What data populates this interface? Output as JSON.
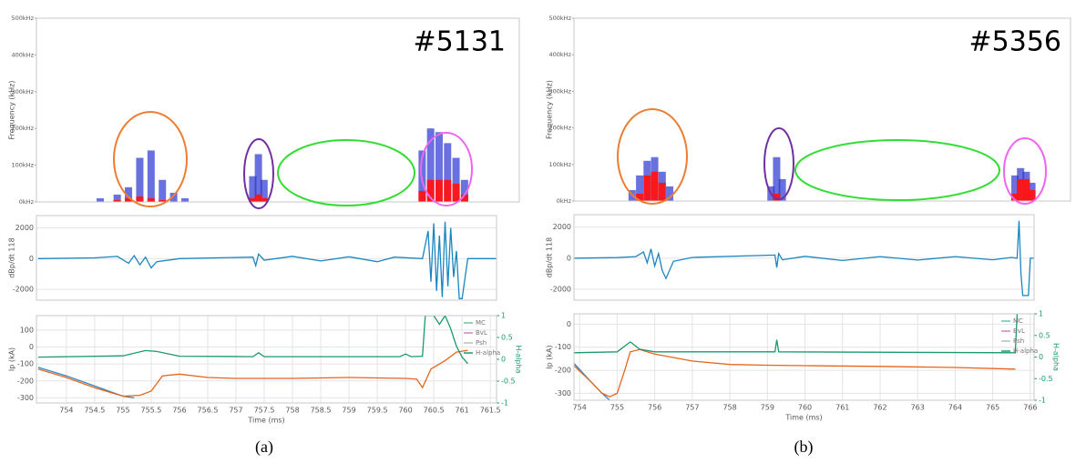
{
  "chart_data": [
    {
      "type": "spectrogram",
      "ylabel": "Frequency (kHz)",
      "annotation": "#5131",
      "xlim": [
        753.47,
        762.02
      ],
      "ylim": [
        0,
        500
      ],
      "yticks": [
        {
          "value": 0,
          "label": "0kHz"
        },
        {
          "value": 100,
          "label": "100kHz"
        },
        {
          "value": 200,
          "label": "200kHz"
        },
        {
          "value": 300,
          "label": "300kHz"
        },
        {
          "value": 400,
          "label": "400kHz"
        },
        {
          "value": 500,
          "label": "500kHz"
        }
      ],
      "x": [
        754.6,
        754.9,
        755.1,
        755.3,
        755.5,
        755.7,
        755.9,
        756.1,
        757.3,
        757.4,
        757.5,
        760.3,
        760.45,
        760.6,
        760.75,
        760.9,
        761.05
      ],
      "series": [
        {
          "color": "#2a35d0",
          "values": [
            10,
            20,
            40,
            120,
            140,
            60,
            25,
            10,
            70,
            130,
            60,
            140,
            200,
            190,
            160,
            120,
            60
          ]
        },
        {
          "color": "#ff1414",
          "values": [
            0,
            5,
            10,
            15,
            10,
            5,
            0,
            0,
            10,
            20,
            10,
            30,
            60,
            60,
            60,
            50,
            20
          ]
        }
      ]
    },
    {
      "type": "line",
      "ylabel": "dBp/dt 118",
      "grid": true,
      "xlim": [
        753.47,
        761.61
      ],
      "ylim": [
        -2700,
        2800
      ],
      "yticks": [
        2000,
        0,
        -2000
      ],
      "series": [
        {
          "color": "#1a86c0",
          "x": [
            753.5,
            754.5,
            754.9,
            755.1,
            755.2,
            755.3,
            755.4,
            755.5,
            755.6,
            756,
            757.3,
            757.35,
            757.4,
            757.5,
            758,
            758.5,
            759,
            759.5,
            759.8,
            760.3,
            760.4,
            760.45,
            760.5,
            760.55,
            760.6,
            760.65,
            760.7,
            760.75,
            760.8,
            760.85,
            760.9,
            760.95,
            761.0,
            761.1,
            761.6
          ],
          "values": [
            0,
            50,
            150,
            -300,
            200,
            -400,
            100,
            -600,
            -200,
            0,
            100,
            -450,
            300,
            -100,
            150,
            -150,
            120,
            -200,
            100,
            0,
            1800,
            -1500,
            2300,
            -2100,
            1500,
            -2500,
            2400,
            -1800,
            2000,
            -1200,
            500,
            -2600,
            -2600,
            0,
            0
          ]
        }
      ]
    },
    {
      "type": "line",
      "ylabel": "Ip (kA)",
      "y2label": "H-alpha",
      "xlabel": "Time (ms)",
      "grid": true,
      "caption": "(a)",
      "xlim": [
        753.47,
        761.61
      ],
      "ylim": [
        -330,
        185
      ],
      "y2lim": [
        -1,
        1
      ],
      "xticks": [
        754,
        754.5,
        755,
        755.5,
        756,
        756.5,
        757,
        757.5,
        758,
        758.5,
        759,
        759.5,
        760,
        760.5,
        761,
        761.5
      ],
      "yticks": [
        100,
        0,
        -100,
        -200,
        -300
      ],
      "y2ticks": [
        1,
        0.5,
        0,
        -0.5,
        -1
      ],
      "legend_loc": "upper right",
      "legend": [
        {
          "name": "MC",
          "color": "#6cc5a3"
        },
        {
          "name": "BvL",
          "color": "#c58ac5"
        },
        {
          "name": "Psh",
          "color": "#bdbdbd"
        },
        {
          "name": "H-alpha",
          "color": "#1a9a6a"
        }
      ],
      "series": [
        {
          "color": "#2f86c8",
          "x": [
            753.5,
            754,
            754.5,
            755,
            755.2
          ],
          "values": [
            -120,
            -170,
            -230,
            -290,
            -300
          ]
        },
        {
          "color": "#e8641b",
          "x": [
            753.5,
            754,
            754.5,
            755,
            755.3,
            755.5,
            755.7,
            756,
            756.5,
            757,
            758,
            759,
            760,
            760.2,
            760.3,
            760.45,
            760.7,
            760.9,
            761.1
          ],
          "values": [
            -130,
            -180,
            -240,
            -290,
            -285,
            -260,
            -170,
            -160,
            -180,
            -185,
            -185,
            -180,
            -185,
            -190,
            -240,
            -130,
            -80,
            -30,
            -20
          ]
        },
        {
          "color": "#1a9a6a",
          "axis": "y2",
          "x": [
            753.5,
            755,
            755.4,
            755.6,
            756,
            757.3,
            757.4,
            757.5,
            759.9,
            760,
            760.1,
            760.3,
            760.35,
            760.5,
            760.6,
            760.7,
            760.8,
            760.9,
            761,
            761.1
          ],
          "values": [
            0.05,
            0.08,
            0.2,
            0.18,
            0.07,
            0.06,
            0.15,
            0.06,
            0.06,
            0.12,
            0.06,
            0.07,
            1,
            1,
            0.8,
            1,
            0.7,
            0.3,
            0.05,
            -0.1
          ]
        }
      ]
    },
    {
      "type": "spectrogram",
      "ylabel": "Frequency (kHz)",
      "annotation": "#5356",
      "xlim": [
        753.85,
        767.08
      ],
      "ylim": [
        0,
        500
      ],
      "yticks": [
        {
          "value": 0,
          "label": "0kHz"
        },
        {
          "value": 100,
          "label": "100kHz"
        },
        {
          "value": 200,
          "label": "200kHz"
        },
        {
          "value": 300,
          "label": "300kHz"
        },
        {
          "value": 400,
          "label": "400kHz"
        },
        {
          "value": 500,
          "label": "500kHz"
        }
      ],
      "x": [
        755.4,
        755.6,
        755.8,
        756.0,
        756.2,
        756.4,
        759.1,
        759.25,
        759.4,
        765.6,
        765.75,
        765.9,
        766.05
      ],
      "series": [
        {
          "color": "#2a35d0",
          "values": [
            30,
            70,
            110,
            120,
            80,
            40,
            40,
            120,
            60,
            70,
            90,
            80,
            50
          ]
        },
        {
          "color": "#ff1414",
          "values": [
            0,
            20,
            70,
            80,
            50,
            0,
            0,
            20,
            0,
            20,
            60,
            60,
            30
          ]
        }
      ]
    },
    {
      "type": "line",
      "ylabel": "dBp/dt 118",
      "grid": true,
      "xlim": [
        753.85,
        766.1
      ],
      "ylim": [
        -2700,
        2800
      ],
      "yticks": [
        2000,
        0,
        -2000
      ],
      "series": [
        {
          "color": "#1a86c0",
          "x": [
            753.85,
            755,
            755.5,
            755.7,
            755.8,
            755.9,
            756.0,
            756.1,
            756.2,
            756.3,
            756.5,
            757,
            759.2,
            759.25,
            759.3,
            759.4,
            760,
            761,
            762,
            763,
            764,
            765,
            765.5,
            765.65,
            765.7,
            765.75,
            765.8,
            765.95,
            766.0,
            766.1
          ],
          "values": [
            0,
            40,
            100,
            400,
            -300,
            600,
            -500,
            300,
            -800,
            -1300,
            -200,
            50,
            200,
            -600,
            300,
            -100,
            120,
            -150,
            100,
            -120,
            100,
            -100,
            50,
            0,
            2400,
            -1000,
            -2400,
            -2400,
            0,
            0
          ]
        }
      ]
    },
    {
      "type": "line",
      "ylabel": "Ip (kA)",
      "y2label": "H-alpha",
      "xlabel": "Time (ms)",
      "grid": true,
      "caption": "(b)",
      "xlim": [
        753.85,
        766.1
      ],
      "ylim": [
        -330,
        45
      ],
      "y2lim": [
        -1,
        1
      ],
      "xticks": [
        754,
        755,
        756,
        757,
        758,
        759,
        760,
        761,
        762,
        763,
        764,
        765,
        766
      ],
      "yticks": [
        0,
        -100,
        -200,
        -300
      ],
      "y2ticks": [
        1,
        0.5,
        0,
        -0.5,
        -1
      ],
      "legend_loc": "upper right",
      "legend": [
        {
          "name": "MC",
          "color": "#6cc5a3"
        },
        {
          "name": "BvL",
          "color": "#c58ac5"
        },
        {
          "name": "Psh",
          "color": "#bdbdbd"
        },
        {
          "name": "H-alpha",
          "color": "#1a9a6a"
        }
      ],
      "series": [
        {
          "color": "#2f86c8",
          "x": [
            753.85,
            754.3,
            754.6,
            754.8
          ],
          "values": [
            -170,
            -250,
            -300,
            -330
          ]
        },
        {
          "color": "#e8641b",
          "x": [
            753.85,
            754.3,
            754.6,
            754.8,
            755.0,
            755.2,
            755.35,
            755.6,
            756,
            757,
            758,
            759,
            760,
            762,
            764,
            765.6
          ],
          "values": [
            -180,
            -250,
            -300,
            -315,
            -300,
            -200,
            -120,
            -110,
            -130,
            -160,
            -175,
            -178,
            -180,
            -183,
            -188,
            -195
          ]
        },
        {
          "color": "#1a9a6a",
          "axis": "y2",
          "x": [
            753.85,
            755,
            755.35,
            755.6,
            756,
            759.2,
            759.25,
            759.3,
            765.6,
            765.65
          ],
          "values": [
            0.1,
            0.12,
            0.35,
            0.18,
            0.12,
            0.12,
            0.4,
            0.12,
            0.1,
            1
          ]
        }
      ]
    }
  ]
}
